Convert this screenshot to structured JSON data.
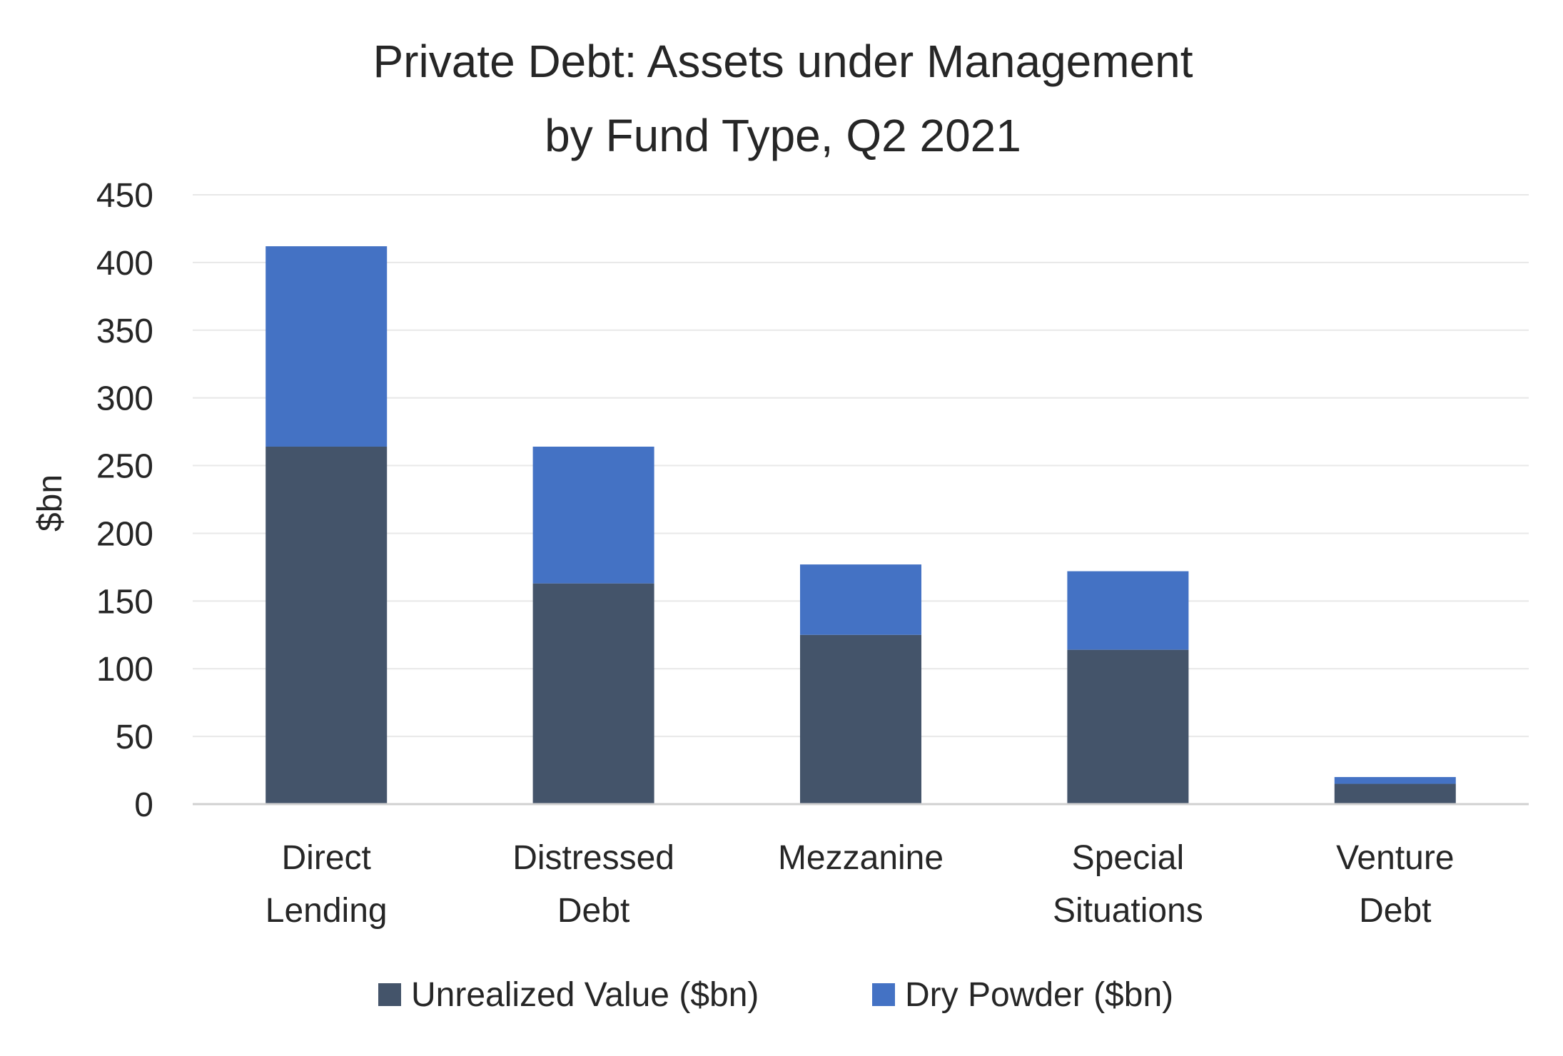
{
  "chart_data": {
    "type": "bar",
    "stacked": true,
    "title_line1": "Private Debt: Assets under Management",
    "title_line2": "by Fund Type, Q2 2021",
    "xlabel": "",
    "ylabel": "$bn",
    "ylim": [
      0,
      450
    ],
    "yticks": [
      0,
      50,
      100,
      150,
      200,
      250,
      300,
      350,
      400,
      450
    ],
    "grid": true,
    "legend_position": "bottom",
    "categories": [
      [
        "Direct",
        "Lending"
      ],
      [
        "Distressed",
        "Debt"
      ],
      [
        "Mezzanine"
      ],
      [
        "Special",
        "Situations"
      ],
      [
        "Venture",
        "Debt"
      ]
    ],
    "series": [
      {
        "name": "Unrealized Value ($bn)",
        "color": "#44546a",
        "values": [
          264,
          163,
          125,
          114,
          15
        ]
      },
      {
        "name": "Dry Powder ($bn)",
        "color": "#4472c4",
        "values": [
          148,
          101,
          52,
          58,
          5
        ]
      }
    ],
    "colors": {
      "grid": "#e8e8e8",
      "axis": "#d0d0d0",
      "text": "#262626"
    }
  }
}
